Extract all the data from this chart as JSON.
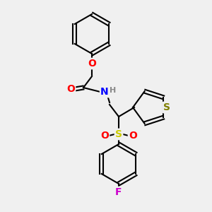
{
  "bg_color": "#f0f0f0",
  "bond_color": "#000000",
  "atom_colors": {
    "O": "#ff0000",
    "N": "#0000ff",
    "S_sulfonyl": "#cccc00",
    "S_thiophene": "#999900",
    "F": "#ff00ff",
    "H": "#999999",
    "C": "#000000"
  },
  "figsize": [
    3.0,
    3.0
  ],
  "dpi": 100
}
